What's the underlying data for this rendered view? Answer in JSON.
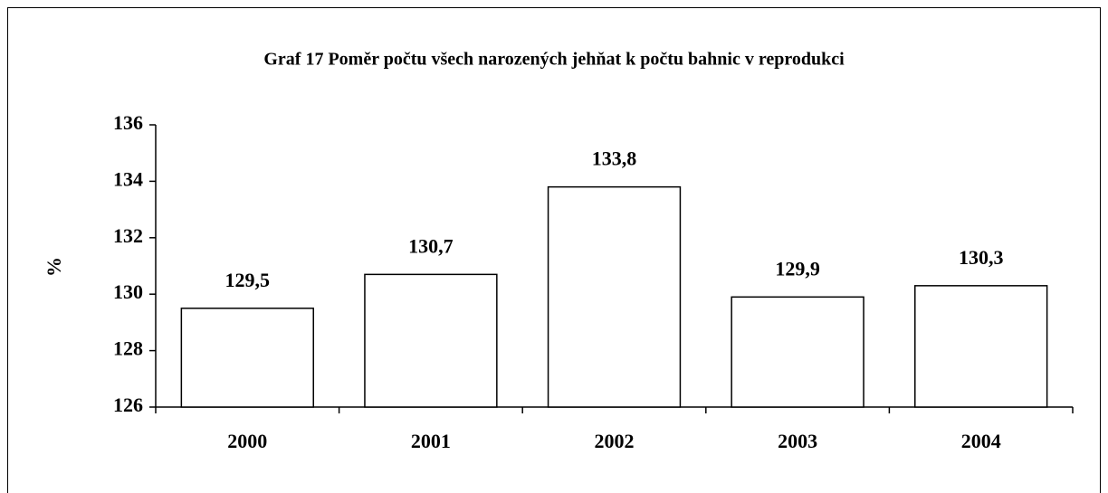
{
  "chart_data": {
    "type": "bar",
    "title": "Graf 17 Poměr počtu všech narozených jehňat k počtu bahnic v reprodukci",
    "y_label": "%",
    "categories": [
      "2000",
      "2001",
      "2002",
      "2003",
      "2004"
    ],
    "values": [
      129.5,
      130.7,
      133.8,
      129.9,
      130.3
    ],
    "value_labels": [
      "129,5",
      "130,7",
      "133,8",
      "129,9",
      "130,3"
    ],
    "color": "#ffffff",
    "ylim": [
      126,
      136
    ],
    "yticks": [
      126,
      128,
      130,
      132,
      134,
      136
    ],
    "grid": false
  }
}
